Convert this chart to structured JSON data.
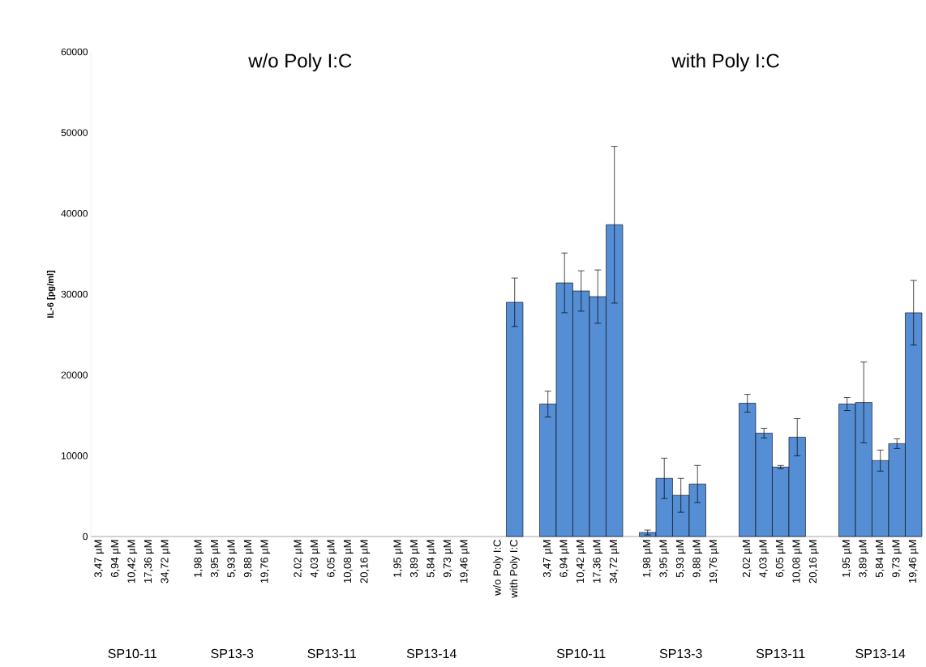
{
  "chart_data": {
    "type": "bar",
    "ylabel": "IL-6 [pg/ml]",
    "categories": [
      "3,47 µM",
      "6,94 µM",
      "10,42 µM",
      "17,36 µM",
      "34,72 µM",
      null,
      "1,98 µM",
      "3,95 µM",
      "5,93 µM",
      "9,88 µM",
      "19,76 µM",
      null,
      "2,02 µM",
      "4,03 µM",
      "6,05 µM",
      "10,08 µM",
      "20,16 µM",
      null,
      "1,95 µM",
      "3,89 µM",
      "5,84 µM",
      "9,73 µM",
      "19,46 µM",
      null,
      "w/o Poly I:C",
      "with Poly I:C",
      null,
      "3,47 µM",
      "6,94 µM",
      "10,42 µM",
      "17,36 µM",
      "34,72 µM",
      null,
      "1,98 µM",
      "3,95 µM",
      "5,93 µM",
      "9,88 µM",
      "19,76 µM",
      null,
      "2,02 µM",
      "4,03 µM",
      "6,05 µM",
      "10,08 µM",
      "20,16 µM",
      null,
      "1,95 µM",
      "3,89 µM",
      "5,84 µM",
      "9,73 µM",
      "19,46 µM"
    ],
    "values": [
      null,
      null,
      null,
      null,
      null,
      null,
      null,
      null,
      null,
      null,
      null,
      null,
      null,
      null,
      null,
      null,
      null,
      null,
      null,
      null,
      null,
      null,
      null,
      null,
      null,
      29000,
      null,
      16400,
      31400,
      30400,
      29700,
      38600,
      null,
      500,
      7200,
      5100,
      6500,
      null,
      null,
      16500,
      12800,
      8600,
      12300,
      null,
      null,
      16400,
      16600,
      9400,
      11500,
      27700
    ],
    "errors": [
      null,
      null,
      null,
      null,
      null,
      null,
      null,
      null,
      null,
      null,
      null,
      null,
      null,
      null,
      null,
      null,
      null,
      null,
      null,
      null,
      null,
      null,
      null,
      null,
      null,
      3000,
      null,
      1600,
      3700,
      2500,
      3300,
      9700,
      null,
      300,
      2500,
      2100,
      2300,
      null,
      null,
      1100,
      600,
      200,
      2300,
      null,
      null,
      800,
      5000,
      1300,
      600,
      4000
    ],
    "color": "#558ed5",
    "ylim": [
      0,
      60000
    ],
    "yticks": [
      0,
      10000,
      20000,
      30000,
      40000,
      50000,
      60000
    ],
    "grid": false,
    "annotations": [
      "w/o Poly I:C",
      "with Poly I:C",
      "SP10-11",
      "SP13-3",
      "SP13-11",
      "SP13-14",
      "SP10-11",
      "SP13-3",
      "SP13-11",
      "SP13-14"
    ]
  }
}
